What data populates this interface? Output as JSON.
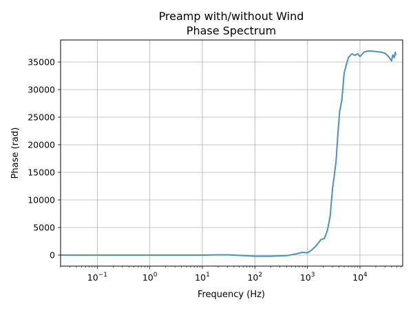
{
  "chart_data": {
    "type": "line",
    "title": "Preamp with/without Wind\nPhase Spectrum",
    "title_lines": [
      "Preamp with/without Wind",
      "Phase Spectrum"
    ],
    "xlabel": "Frequency (Hz)",
    "ylabel": "Phase (rad)",
    "xscale": "log",
    "xlim": [
      0.02,
      65000
    ],
    "ylim": [
      -2000,
      39000
    ],
    "grid": true,
    "line_color": "#4a90c4",
    "x_ticks": [
      {
        "value": 0.1,
        "base": "10",
        "exp": "−1"
      },
      {
        "value": 1,
        "base": "10",
        "exp": "0"
      },
      {
        "value": 10,
        "base": "10",
        "exp": "1"
      },
      {
        "value": 100,
        "base": "10",
        "exp": "2"
      },
      {
        "value": 1000,
        "base": "10",
        "exp": "3"
      },
      {
        "value": 10000,
        "base": "10",
        "exp": "4"
      }
    ],
    "y_ticks": [
      0,
      5000,
      10000,
      15000,
      20000,
      25000,
      30000,
      35000
    ],
    "y_tick_labels": [
      "0",
      "5000",
      "10000",
      "15000",
      "20000",
      "25000",
      "30000",
      "35000"
    ],
    "series": [
      {
        "x": [
          0.02,
          0.1,
          1,
          10,
          20,
          30,
          40,
          60,
          100,
          200,
          400,
          600,
          800,
          1000,
          1200,
          1500,
          1800,
          2100,
          2400,
          2700,
          3000,
          3200,
          3500,
          3800,
          4100,
          4500,
          5000,
          5500,
          6000,
          7000,
          8000,
          9000,
          10000,
          12000,
          14000,
          16000,
          20000,
          25000,
          30000,
          35000,
          40000,
          42000,
          45000,
          47000,
          48000
        ],
        "y": [
          0,
          0,
          0,
          0,
          50,
          50,
          0,
          -100,
          -200,
          -200,
          -100,
          200,
          500,
          400,
          900,
          1800,
          2800,
          3000,
          4500,
          7000,
          12000,
          14000,
          17000,
          22000,
          26000,
          28000,
          33000,
          34500,
          35800,
          36500,
          36200,
          36500,
          36000,
          36800,
          37000,
          37000,
          36900,
          36800,
          36600,
          36000,
          35200,
          36300,
          35800,
          36800,
          36200
        ]
      }
    ]
  }
}
